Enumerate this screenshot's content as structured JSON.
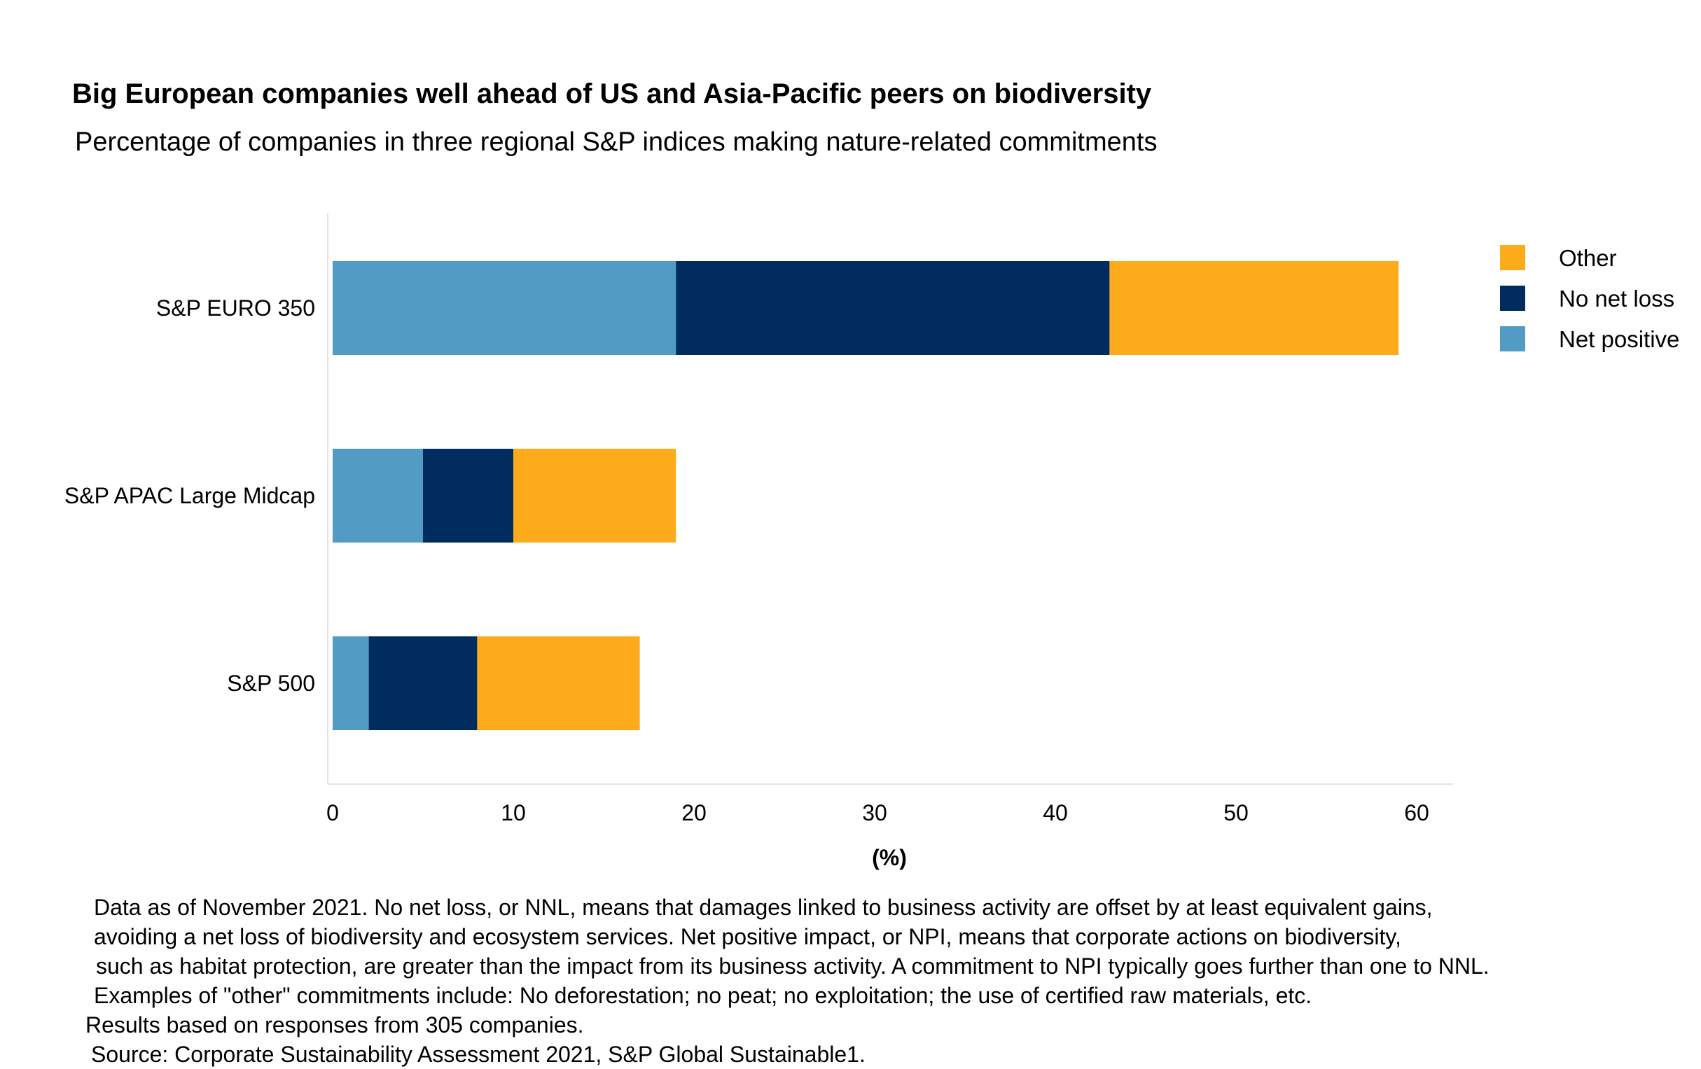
{
  "chart_data": {
    "type": "bar",
    "orientation": "horizontal",
    "stacked": true,
    "title": "Big European companies well ahead of US and Asia-Pacific peers on biodiversity",
    "subtitle": "Percentage of companies in three regional S&P indices making nature-related commitments",
    "categories": [
      "S&P EURO 350",
      "S&P APAC Large Midcap",
      "S&P 500"
    ],
    "series": [
      {
        "name": "Net positive",
        "color": "#519bc4",
        "values": [
          19,
          5,
          2
        ]
      },
      {
        "name": "No net loss",
        "color": "#002c5f",
        "values": [
          24,
          5,
          6
        ]
      },
      {
        "name": "Other",
        "color": "#fdab1a",
        "values": [
          16,
          9,
          9
        ]
      }
    ],
    "xlabel": "(%)",
    "xlim": [
      0,
      62
    ],
    "xticks": [
      0,
      10,
      20,
      30,
      40,
      50,
      60
    ],
    "grid": false,
    "legend": {
      "position": "right",
      "order": [
        "Other",
        "No net loss",
        "Net positive"
      ]
    }
  },
  "notes": [
    "Data as of November 2021. No net loss, or NNL, means that damages linked to business activity are offset by at least equivalent gains,",
    "avoiding a net loss of biodiversity and ecosystem services. Net positive impact, or NPI, means that corporate actions on biodiversity,",
    "such as habitat protection, are greater than the impact from its business activity. A commitment to NPI typically goes further than one to NNL.",
    "Examples of  \"other\" commitments include: No deforestation; no peat; no exploitation; the use of certified raw  materials, etc.",
    "Results based on responses from 305 companies.",
    "Source: Corporate Sustainability Assessment 2021, S&P Global Sustainable1."
  ]
}
